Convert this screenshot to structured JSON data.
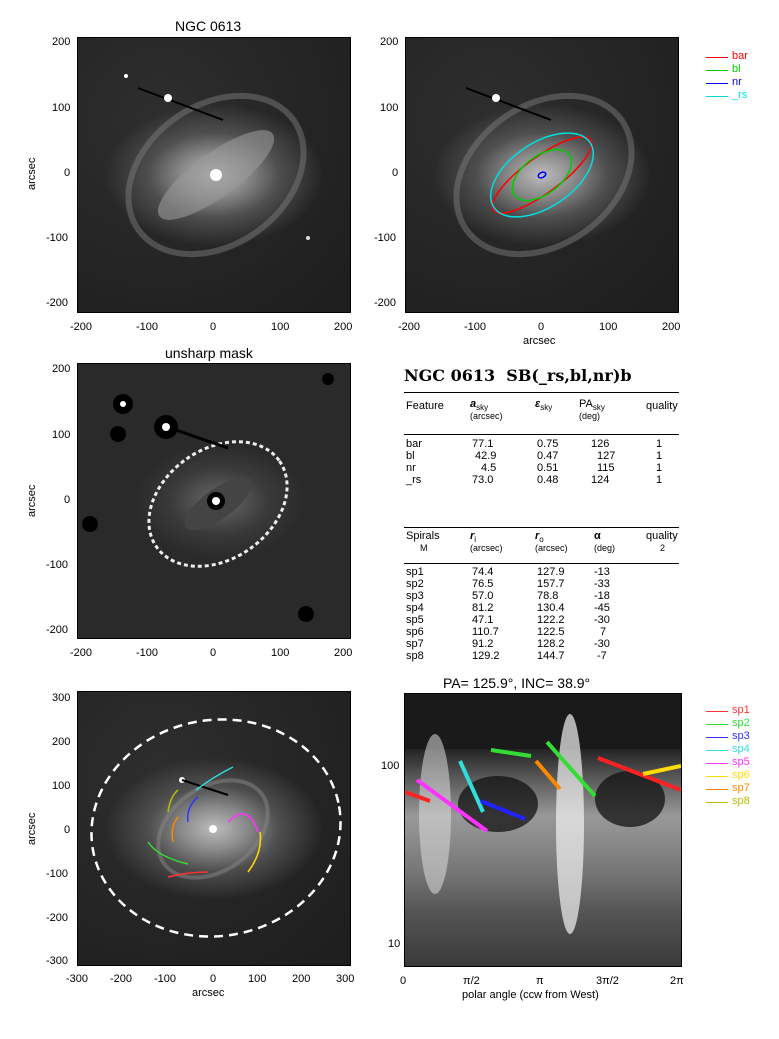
{
  "panels": {
    "p1": {
      "title": "NGC 0613",
      "ylabel": "arcsec",
      "xticks": [
        "-200",
        "-100",
        "0",
        "100",
        "200"
      ],
      "yticks": [
        "200",
        "100",
        "0",
        "-100",
        "-200"
      ]
    },
    "p2": {
      "xlabel": "arcsec",
      "xticks": [
        "-200",
        "-100",
        "0",
        "100",
        "200"
      ],
      "yticks": [
        "200",
        "100",
        "0",
        "-100",
        "-200"
      ]
    },
    "p3": {
      "title": "unsharp mask",
      "ylabel": "arcsec",
      "xticks": [
        "-200",
        "-100",
        "0",
        "100",
        "200"
      ],
      "yticks": [
        "200",
        "100",
        "0",
        "-100",
        "-200"
      ]
    },
    "p5": {
      "ylabel": "arcsec",
      "xlabel": "arcsec",
      "xticks": [
        "-300",
        "-200",
        "-100",
        "0",
        "100",
        "200",
        "300"
      ],
      "yticks": [
        "300",
        "200",
        "100",
        "0",
        "-100",
        "-200",
        "-300"
      ]
    },
    "p6": {
      "title": "PA= 125.9°, INC=  38.9°",
      "xlabel": "polar angle (ccw from West)",
      "xticks": [
        "0",
        "π/2",
        "π",
        "3π/2",
        "2π"
      ],
      "yticks": [
        "100",
        "10"
      ]
    }
  },
  "legend_top": [
    {
      "label": "bar",
      "color": "#ff0000"
    },
    {
      "label": "bl",
      "color": "#00cc00"
    },
    {
      "label": "nr",
      "color": "#0000ff"
    },
    {
      "label": "_rs",
      "color": "#00e0e0"
    }
  ],
  "legend_spirals": [
    {
      "label": "sp1",
      "color": "#ff3333"
    },
    {
      "label": "sp2",
      "color": "#33dd33"
    },
    {
      "label": "sp3",
      "color": "#3333ff"
    },
    {
      "label": "sp4",
      "color": "#33dddd"
    },
    {
      "label": "sp5",
      "color": "#ff33ff"
    },
    {
      "label": "sp6",
      "color": "#ffdd00"
    },
    {
      "label": "sp7",
      "color": "#ff8800"
    },
    {
      "label": "sp8",
      "color": "#bbbb00"
    }
  ],
  "table": {
    "heading_name": "NGC 0613",
    "heading_class": "SB(_rs,bl,nr)b",
    "features_header": {
      "feature": "Feature",
      "a": "a",
      "a_sub": "sky",
      "a_unit": "(arcsec)",
      "e": "ε",
      "e_sub": "sky",
      "pa": "PA",
      "pa_sub": "sky",
      "pa_unit": "(deg)",
      "quality": "quality"
    },
    "features": [
      {
        "name": "bar",
        "a": "77.1",
        "e": "0.75",
        "pa": "126",
        "q": "1"
      },
      {
        "name": "bl",
        "a": "42.9",
        "e": "0.47",
        "pa": "127",
        "q": "1"
      },
      {
        "name": "nr",
        "a": "4.5",
        "e": "0.51",
        "pa": "115",
        "q": "1"
      },
      {
        "name": "_rs",
        "a": "73.0",
        "e": "0.48",
        "pa": "124",
        "q": "1"
      }
    ],
    "spirals_header": {
      "spirals": "Spirals",
      "m": "M",
      "ri": "r",
      "ri_sub": "i",
      "ri_unit": "(arcsec)",
      "ro": "r",
      "ro_sub": "o",
      "ro_unit": "(arcsec)",
      "alpha": "α",
      "alpha_unit": "(deg)",
      "quality": "quality",
      "quality_val": "2"
    },
    "spirals": [
      {
        "name": "sp1",
        "ri": "74.4",
        "ro": "127.9",
        "alpha": "-13"
      },
      {
        "name": "sp2",
        "ri": "76.5",
        "ro": "157.7",
        "alpha": "-33"
      },
      {
        "name": "sp3",
        "ri": "57.0",
        "ro": "78.8",
        "alpha": "-18"
      },
      {
        "name": "sp4",
        "ri": "81.2",
        "ro": "130.4",
        "alpha": "-45"
      },
      {
        "name": "sp5",
        "ri": "47.1",
        "ro": "122.2",
        "alpha": "-30"
      },
      {
        "name": "sp6",
        "ri": "110.7",
        "ro": "122.5",
        "alpha": "7"
      },
      {
        "name": "sp7",
        "ri": "91.2",
        "ro": "128.2",
        "alpha": "-30"
      },
      {
        "name": "sp8",
        "ri": "129.2",
        "ro": "144.7",
        "alpha": "-7"
      }
    ]
  }
}
